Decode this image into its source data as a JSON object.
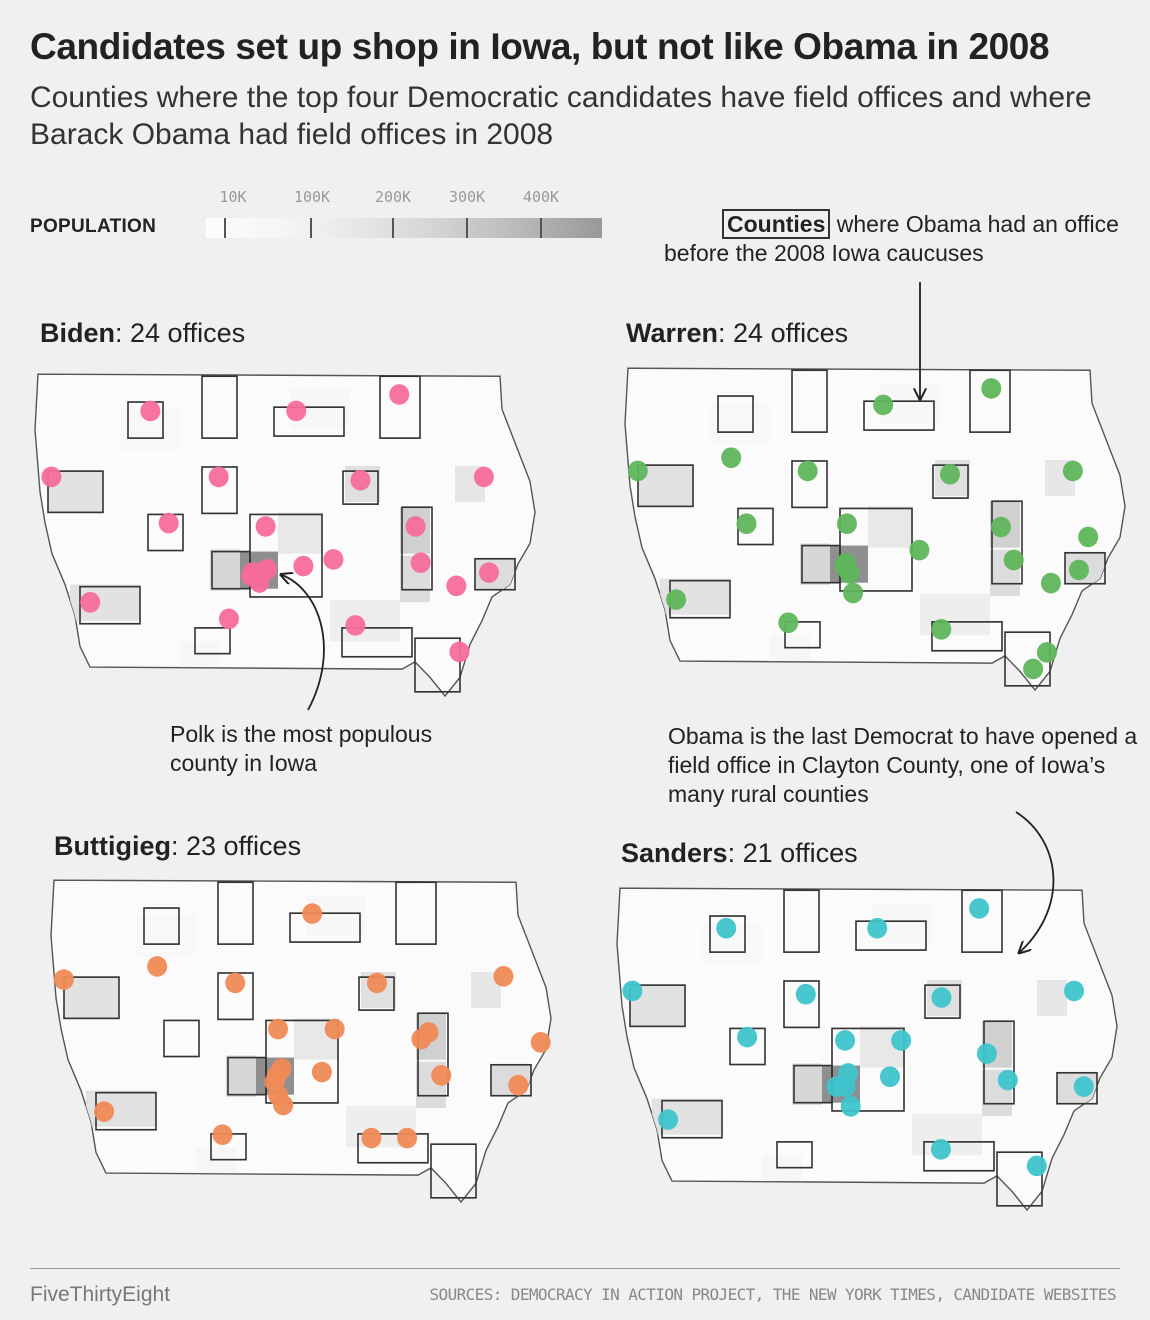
{
  "header": {
    "title": "Candidates set up shop in Iowa, but not like Obama in 2008",
    "subtitle": "Counties where the top four Democratic candidates have field offices and where Barack Obama had field offices in 2008"
  },
  "legend": {
    "label": "POPULATION",
    "ticks": [
      "10K",
      "100K",
      "200K",
      "300K",
      "400K"
    ],
    "tick_values": [
      10000,
      100000,
      200000,
      300000,
      400000
    ],
    "colors": [
      "#fdfdfd",
      "#999999"
    ]
  },
  "annotations": {
    "counties_boxed": "Counties",
    "counties_rest": " where Obama had an office before the 2008 Iowa caucuses",
    "polk": "Polk is the most populous county in Iowa",
    "clayton": "Obama is the last Democrat to have opened a field office in Clayton County, one of Iowa’s many rural counties"
  },
  "panels": [
    {
      "name": "Biden",
      "count_text": ": 24 offices",
      "offices": 24,
      "color": "#f76d9a"
    },
    {
      "name": "Warren",
      "count_text": ": 24 offices",
      "offices": 24,
      "color": "#5fb55b"
    },
    {
      "name": "Buttigieg",
      "count_text": ": 23 offices",
      "offices": 23,
      "color": "#f08a56"
    },
    {
      "name": "Sanders",
      "count_text": ": 21 offices",
      "offices": 21,
      "color": "#3ec4cc"
    }
  ],
  "footer": {
    "brand": "FiveThirtyEight",
    "sources": "SOURCES: DEMOCRACY IN ACTION PROJECT, THE NEW YORK TIMES, CANDIDATE WEBSITES"
  }
}
